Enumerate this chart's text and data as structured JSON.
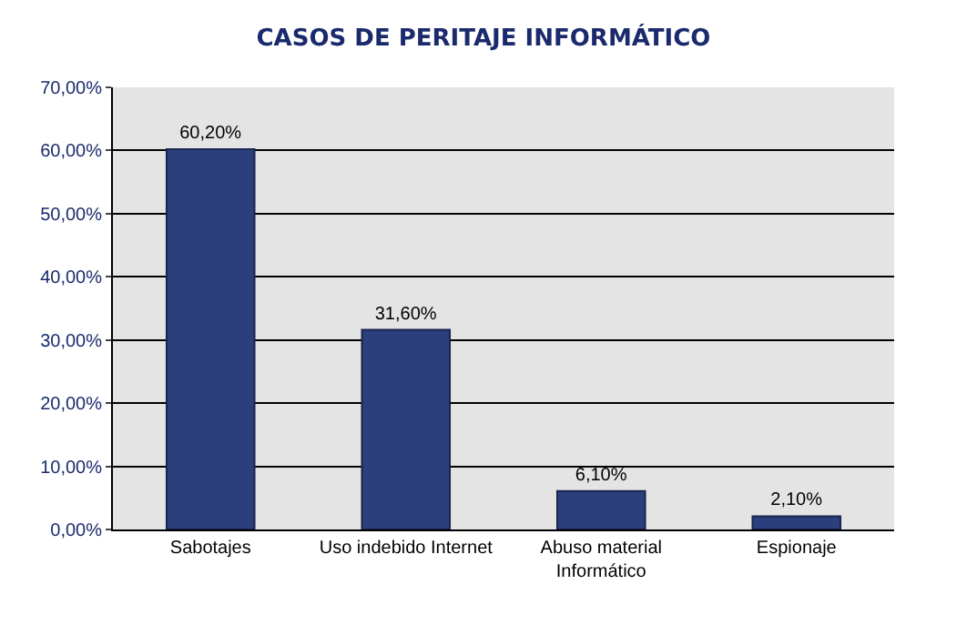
{
  "chart_data": {
    "type": "bar",
    "title": "CASOS DE PERITAJE INFORMÁTICO",
    "categories": [
      "Sabotajes",
      "Uso indebido Internet",
      "Abuso material Informático",
      "Espionaje"
    ],
    "values": [
      60.2,
      31.6,
      6.1,
      2.1
    ],
    "value_labels": [
      "60,20%",
      "31,60%",
      "6,10%",
      "2,10%"
    ],
    "color": "#2b3f7c",
    "ylim": [
      0,
      70
    ],
    "yticks": [
      {
        "value": 0,
        "label": "0,00%"
      },
      {
        "value": 10,
        "label": "10,00%"
      },
      {
        "value": 20,
        "label": "20,00%"
      },
      {
        "value": 30,
        "label": "30,00%"
      },
      {
        "value": 40,
        "label": "40,00%"
      },
      {
        "value": 50,
        "label": "50,00%"
      },
      {
        "value": 60,
        "label": "60,00%"
      },
      {
        "value": 70,
        "label": "70,00%"
      }
    ],
    "grid": "y"
  }
}
